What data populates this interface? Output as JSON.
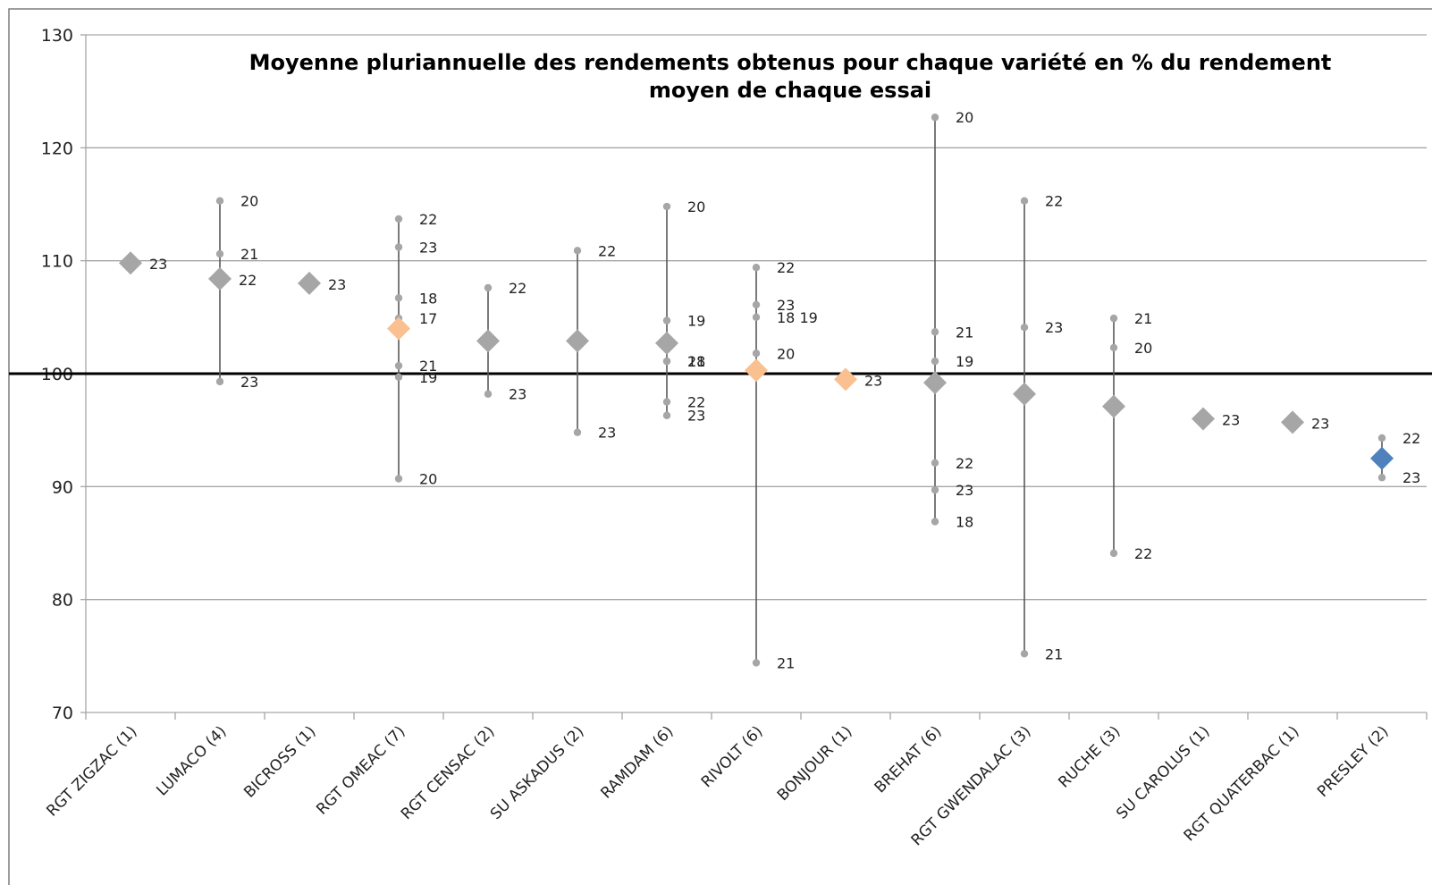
{
  "chart_data": {
    "type": "scatter",
    "title_lines": [
      "Moyenne pluriannuelle des rendements obtenus pour chaque variété en % du rendement",
      "moyen de chaque essai"
    ],
    "xlabel": "",
    "ylabel": "",
    "ylim": [
      70,
      130
    ],
    "yticks": [
      70,
      80,
      90,
      100,
      110,
      120,
      130
    ],
    "reference_line": 100,
    "grid": true,
    "colors": {
      "mean_default": "#a6a6a6",
      "mean_highlight": "#fac090",
      "mean_special": "#4f81bd",
      "year_point": "#a6a6a6",
      "range_line": "#595959",
      "reference_line": "#000000",
      "grid": "#a6a6a6"
    },
    "categories": [
      {
        "label": "RGT ZIGZAC (1)",
        "mean": 109.8,
        "mean_label": "23",
        "mean_style": "default",
        "points": []
      },
      {
        "label": "LUMACO (4)",
        "mean": 108.4,
        "mean_label": "22",
        "mean_style": "default",
        "points": [
          {
            "y": 115.3,
            "label": "20"
          },
          {
            "y": 110.6,
            "label": "21"
          },
          {
            "y": 99.3,
            "label": "23"
          }
        ]
      },
      {
        "label": "BICROSS (1)",
        "mean": 108.0,
        "mean_label": "23",
        "mean_style": "default",
        "points": []
      },
      {
        "label": "RGT OMEAC (7)",
        "mean": 104.0,
        "mean_label": "",
        "mean_style": "highlight",
        "points": [
          {
            "y": 113.7,
            "label": "22"
          },
          {
            "y": 111.2,
            "label": "23"
          },
          {
            "y": 106.7,
            "label": "18"
          },
          {
            "y": 104.9,
            "label": "17"
          },
          {
            "y": 100.7,
            "label": "21"
          },
          {
            "y": 99.7,
            "label": "19"
          },
          {
            "y": 90.7,
            "label": "20"
          }
        ]
      },
      {
        "label": "RGT CENSAC (2)",
        "mean": 102.9,
        "mean_label": "",
        "mean_style": "default",
        "points": [
          {
            "y": 107.6,
            "label": "22"
          },
          {
            "y": 98.2,
            "label": "23"
          }
        ]
      },
      {
        "label": "SU ASKADUS (2)",
        "mean": 102.9,
        "mean_label": "",
        "mean_style": "default",
        "points": [
          {
            "y": 110.9,
            "label": "22"
          },
          {
            "y": 94.8,
            "label": "23"
          }
        ]
      },
      {
        "label": "RAMDAM (6)",
        "mean": 102.7,
        "mean_label": "",
        "mean_style": "default",
        "points": [
          {
            "y": 114.8,
            "label": "20"
          },
          {
            "y": 104.7,
            "label": "19"
          },
          {
            "y": 101.1,
            "label": "18"
          },
          {
            "y": 101.1,
            "label": "21"
          },
          {
            "y": 97.5,
            "label": "22"
          },
          {
            "y": 96.3,
            "label": "23"
          }
        ]
      },
      {
        "label": "RIVOLT (6)",
        "mean": 100.3,
        "mean_label": "",
        "mean_style": "highlight",
        "points": [
          {
            "y": 109.4,
            "label": "22"
          },
          {
            "y": 106.1,
            "label": "23"
          },
          {
            "y": 105.0,
            "label": "18 19"
          },
          {
            "y": 101.8,
            "label": "20"
          },
          {
            "y": 74.4,
            "label": "21"
          }
        ]
      },
      {
        "label": "BONJOUR (1)",
        "mean": 99.5,
        "mean_label": "23",
        "mean_style": "highlight",
        "points": []
      },
      {
        "label": "BREHAT (6)",
        "mean": 99.2,
        "mean_label": "",
        "mean_style": "default",
        "points": [
          {
            "y": 122.7,
            "label": "20"
          },
          {
            "y": 103.7,
            "label": "21"
          },
          {
            "y": 101.1,
            "label": "19"
          },
          {
            "y": 92.1,
            "label": "22"
          },
          {
            "y": 89.7,
            "label": "23"
          },
          {
            "y": 86.9,
            "label": "18"
          }
        ]
      },
      {
        "label": "RGT GWENDALAC (3)",
        "mean": 98.2,
        "mean_label": "",
        "mean_style": "default",
        "points": [
          {
            "y": 115.3,
            "label": "22"
          },
          {
            "y": 104.1,
            "label": "23"
          },
          {
            "y": 75.2,
            "label": "21"
          }
        ]
      },
      {
        "label": "RUCHE (3)",
        "mean": 97.1,
        "mean_label": "",
        "mean_style": "default",
        "points": [
          {
            "y": 104.9,
            "label": "21"
          },
          {
            "y": 102.3,
            "label": "20"
          },
          {
            "y": 84.1,
            "label": "22"
          }
        ]
      },
      {
        "label": "SU CAROLUS (1)",
        "mean": 96.0,
        "mean_label": "23",
        "mean_style": "default",
        "points": []
      },
      {
        "label": "RGT QUATERBAC (1)",
        "mean": 95.7,
        "mean_label": "23",
        "mean_style": "default",
        "points": []
      },
      {
        "label": "PRESLEY (2)",
        "mean": 92.5,
        "mean_label": "",
        "mean_style": "special",
        "points": [
          {
            "y": 94.3,
            "label": "22"
          },
          {
            "y": 90.8,
            "label": "23"
          }
        ]
      }
    ]
  }
}
